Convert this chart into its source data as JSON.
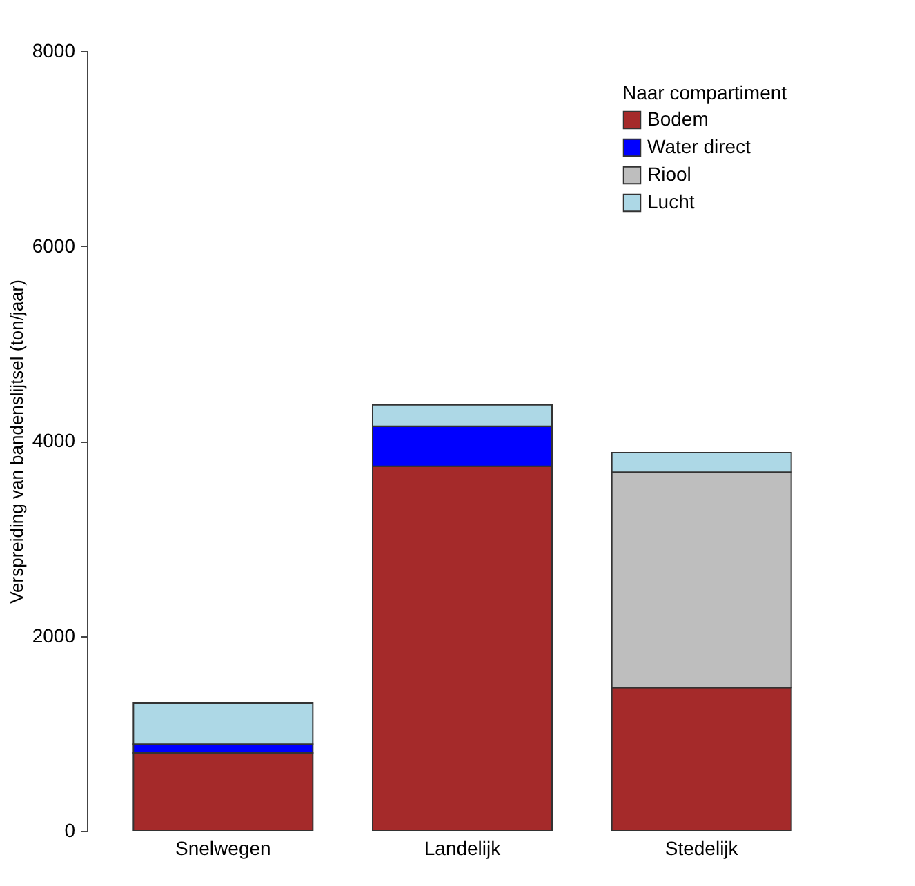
{
  "chart_data": {
    "type": "bar",
    "stacked": true,
    "ylabel": "Verspreiding van bandenslijtsel  (ton/jaar)",
    "legend_title": "Naar compartiment",
    "categories": [
      "Snelwegen",
      "Landelijk",
      "Stedelijk"
    ],
    "series": [
      {
        "name": "Bodem",
        "color": "#a52a2a",
        "values": [
          800,
          3740,
          1470
        ]
      },
      {
        "name": "Water direct",
        "color": "#0000ff",
        "values": [
          90,
          410,
          0
        ]
      },
      {
        "name": "Riool",
        "color": "#bebebe",
        "values": [
          0,
          0,
          2210
        ]
      },
      {
        "name": "Lucht",
        "color": "#add8e6",
        "values": [
          420,
          220,
          200
        ]
      }
    ],
    "ylim": [
      0,
      8000
    ],
    "yticks": [
      0,
      2000,
      4000,
      6000,
      8000
    ],
    "grid": false,
    "legend": "top right"
  }
}
